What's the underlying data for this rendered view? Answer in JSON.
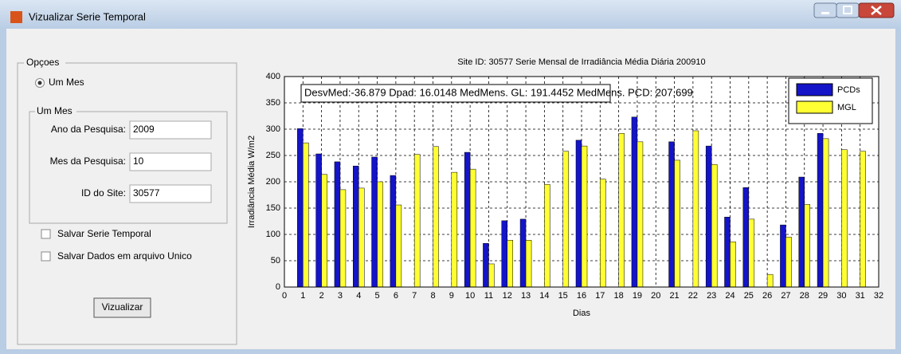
{
  "window": {
    "title": "Vizualizar Serie Temporal"
  },
  "panel": {
    "title": "Opçoes",
    "radio": "Um Mes",
    "subpanel": {
      "title": "Um Mes",
      "fields": [
        {
          "label": "Ano da Pesquisa:",
          "value": "2009"
        },
        {
          "label": "Mes da Pesquisa:",
          "value": "10"
        },
        {
          "label": "ID do Site:",
          "value": "30577"
        }
      ]
    },
    "checkboxes": [
      "Salvar Serie Temporal",
      "Salvar Dados em arquivo Unico"
    ],
    "button": "Vizualizar"
  },
  "chart_data": {
    "type": "bar",
    "title": "Site ID: 30577 Serie Mensal de Irradiância Média Diária 200910",
    "xlabel": "Dias",
    "ylabel": "Irradiância Média W/m2",
    "annotation": "DesvMed:-36.879 Dpad: 16.0148 MedMens. GL: 191.4452 MedMens. PCD: 207.699",
    "x": [
      1,
      2,
      3,
      4,
      5,
      6,
      7,
      8,
      9,
      10,
      11,
      12,
      13,
      14,
      15,
      16,
      17,
      18,
      19,
      20,
      21,
      22,
      23,
      24,
      25,
      26,
      27,
      28,
      29,
      30,
      31
    ],
    "series": [
      {
        "name": "PCDs",
        "color": "#1414c8",
        "values": [
          301,
          253,
          238,
          230,
          247,
          212,
          0,
          0,
          0,
          256,
          83,
          126,
          129,
          0,
          0,
          279,
          0,
          0,
          323,
          0,
          276,
          0,
          268,
          133,
          189,
          0,
          118,
          209,
          292,
          0,
          0
        ]
      },
      {
        "name": "MGL",
        "color": "#ffff33",
        "values": [
          274,
          214,
          185,
          188,
          200,
          156,
          252,
          267,
          218,
          224,
          44,
          89,
          89,
          195,
          258,
          268,
          205,
          292,
          276,
          0,
          241,
          297,
          233,
          86,
          129,
          24,
          95,
          157,
          282,
          261,
          258
        ]
      }
    ],
    "xlim": [
      0,
      32
    ],
    "xticks": [
      0,
      1,
      2,
      3,
      4,
      5,
      6,
      7,
      8,
      9,
      10,
      11,
      12,
      13,
      14,
      15,
      16,
      17,
      18,
      19,
      20,
      21,
      22,
      23,
      24,
      25,
      26,
      27,
      28,
      29,
      30,
      31,
      32
    ],
    "ylim": [
      0,
      400
    ],
    "yticks": [
      0,
      50,
      100,
      150,
      200,
      250,
      300,
      350,
      400
    ],
    "grid": true,
    "legend": "northeast"
  }
}
